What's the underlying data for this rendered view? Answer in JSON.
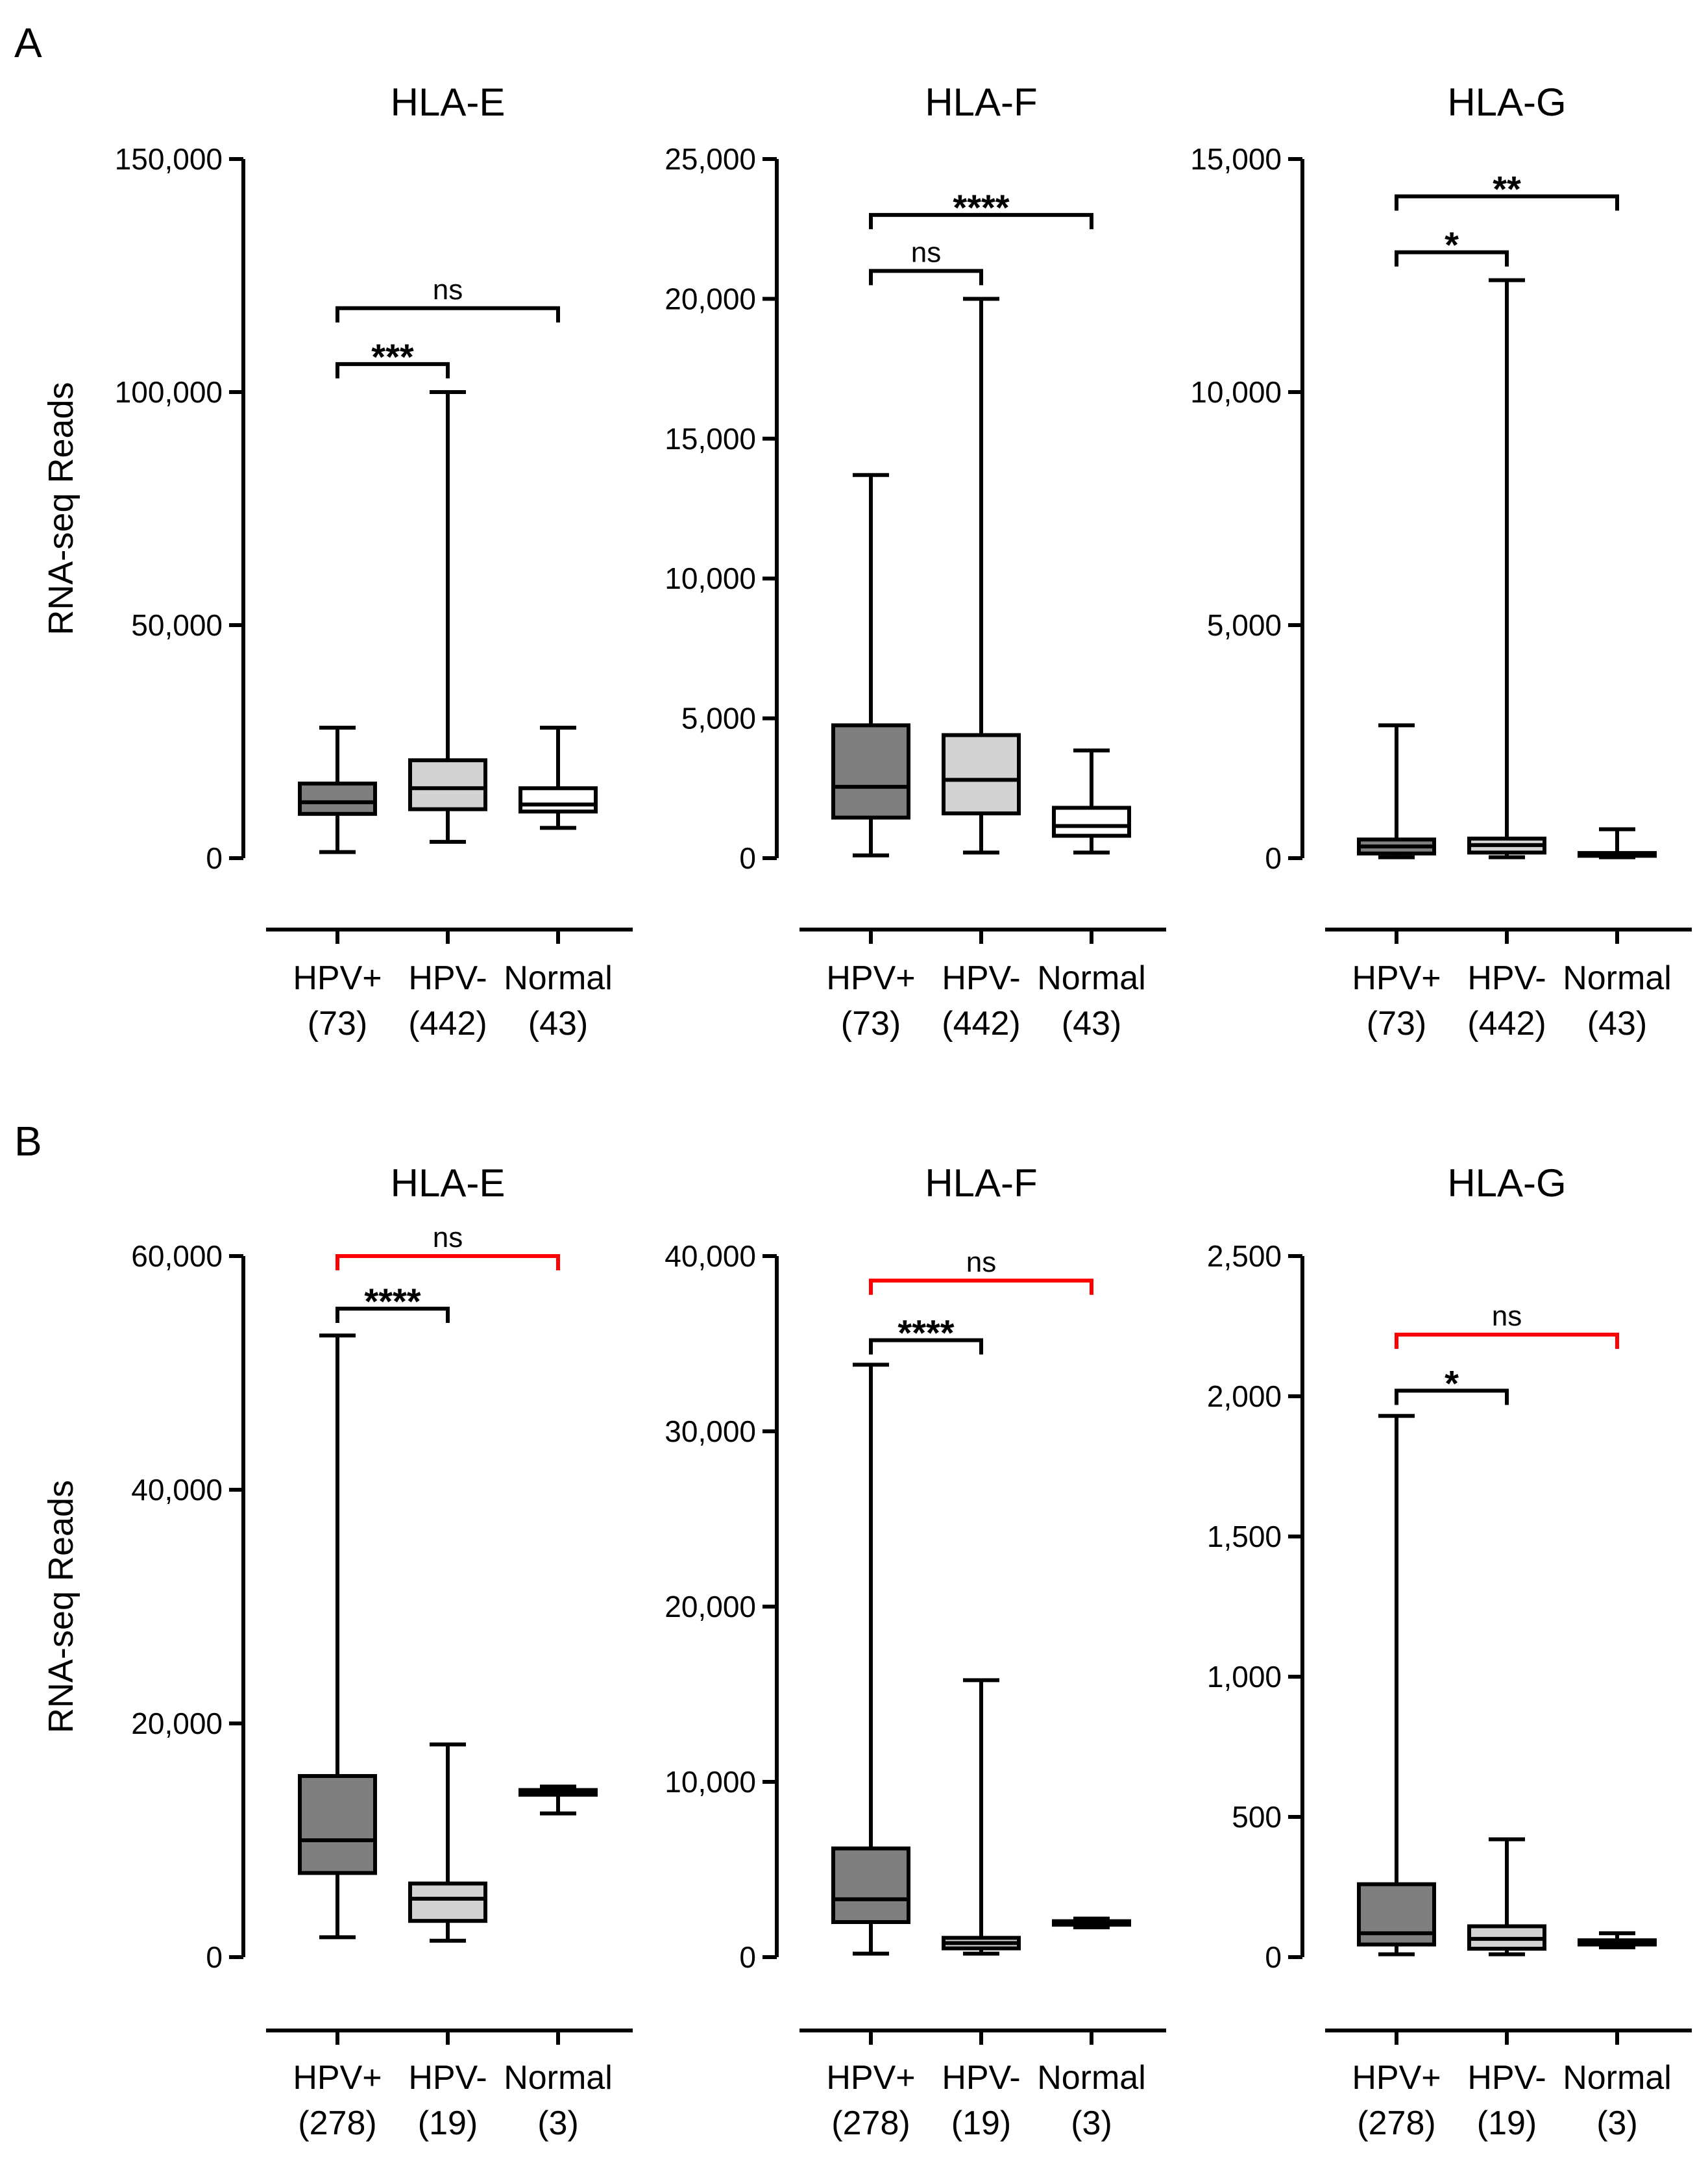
{
  "figure": {
    "panel_labels": [
      "A",
      "B"
    ],
    "ylabel": "RNA-seq Reads"
  },
  "colors": {
    "hpv_pos": "#7f7f7f",
    "hpv_neg": "#d3d3d3",
    "normal": "#ffffff",
    "bracket_black": "#000000",
    "bracket_red": "#ff0000"
  },
  "chart_data": [
    {
      "type": "box",
      "panel": "A",
      "title": "HLA-E",
      "ylabel": "RNA-seq Reads",
      "ylim": [
        0,
        150000
      ],
      "yticks": [
        0,
        50000,
        100000,
        150000
      ],
      "ytick_labels": [
        "0",
        "50,000",
        "100,000",
        "150,000"
      ],
      "categories": [
        "HPV+",
        "HPV-",
        "Normal"
      ],
      "counts": [
        "(73)",
        "(442)",
        "(43)"
      ],
      "boxes": [
        {
          "min": 1300,
          "q1": 9500,
          "median": 12000,
          "q3": 16000,
          "max": 28000,
          "fill": "hpv_pos"
        },
        {
          "min": 3500,
          "q1": 10500,
          "median": 15000,
          "q3": 21000,
          "max": 100000,
          "fill": "hpv_neg"
        },
        {
          "min": 6500,
          "q1": 10000,
          "median": 11500,
          "q3": 15000,
          "max": 28000,
          "fill": "normal"
        }
      ],
      "brackets": [
        {
          "from": 0,
          "to": 1,
          "y": 106000,
          "label": "***",
          "color": "bracket_black"
        },
        {
          "from": 0,
          "to": 2,
          "y": 118000,
          "label": "ns",
          "color": "bracket_black"
        }
      ]
    },
    {
      "type": "box",
      "panel": "A",
      "title": "HLA-F",
      "ylabel": "",
      "ylim": [
        0,
        25000
      ],
      "yticks": [
        0,
        5000,
        10000,
        15000,
        20000,
        25000
      ],
      "ytick_labels": [
        "0",
        "5,000",
        "10,000",
        "15,000",
        "20,000",
        "25,000"
      ],
      "categories": [
        "HPV+",
        "HPV-",
        "Normal"
      ],
      "counts": [
        "(73)",
        "(442)",
        "(43)"
      ],
      "boxes": [
        {
          "min": 100,
          "q1": 1450,
          "median": 2550,
          "q3": 4750,
          "max": 13700,
          "fill": "hpv_pos"
        },
        {
          "min": 200,
          "q1": 1600,
          "median": 2800,
          "q3": 4400,
          "max": 20000,
          "fill": "hpv_neg"
        },
        {
          "min": 200,
          "q1": 800,
          "median": 1150,
          "q3": 1800,
          "max": 3850,
          "fill": "normal"
        }
      ],
      "brackets": [
        {
          "from": 0,
          "to": 1,
          "y": 21000,
          "label": "ns",
          "color": "bracket_black"
        },
        {
          "from": 0,
          "to": 2,
          "y": 23000,
          "label": "****",
          "color": "bracket_black"
        }
      ]
    },
    {
      "type": "box",
      "panel": "A",
      "title": "HLA-G",
      "ylabel": "",
      "ylim": [
        0,
        15000
      ],
      "yticks": [
        0,
        5000,
        10000,
        15000
      ],
      "ytick_labels": [
        "0",
        "5,000",
        "10,000",
        "15,000"
      ],
      "categories": [
        "HPV+",
        "HPV-",
        "Normal"
      ],
      "counts": [
        "(73)",
        "(442)",
        "(43)"
      ],
      "boxes": [
        {
          "min": 20,
          "q1": 100,
          "median": 250,
          "q3": 400,
          "max": 2850,
          "fill": "hpv_pos"
        },
        {
          "min": 20,
          "q1": 120,
          "median": 280,
          "q3": 420,
          "max": 12400,
          "fill": "hpv_neg"
        },
        {
          "min": 20,
          "q1": 50,
          "median": 80,
          "q3": 110,
          "max": 620,
          "fill": "normal"
        }
      ],
      "brackets": [
        {
          "from": 0,
          "to": 1,
          "y": 13000,
          "label": "*",
          "color": "bracket_black"
        },
        {
          "from": 0,
          "to": 2,
          "y": 14200,
          "label": "**",
          "color": "bracket_black"
        }
      ]
    },
    {
      "type": "box",
      "panel": "B",
      "title": "HLA-E",
      "ylabel": "RNA-seq Reads",
      "ylim": [
        0,
        60000
      ],
      "yticks": [
        0,
        20000,
        40000,
        60000
      ],
      "ytick_labels": [
        "0",
        "20,000",
        "40,000",
        "60,000"
      ],
      "categories": [
        "HPV+",
        "HPV-",
        "Normal"
      ],
      "counts": [
        "(278)",
        "(19)",
        "(3)"
      ],
      "boxes": [
        {
          "min": 1700,
          "q1": 7200,
          "median": 10000,
          "q3": 15500,
          "max": 53200,
          "fill": "hpv_pos"
        },
        {
          "min": 1400,
          "q1": 3100,
          "median": 5000,
          "q3": 6300,
          "max": 18200,
          "fill": "hpv_neg"
        },
        {
          "min": 12300,
          "q1": 13900,
          "median": 14100,
          "q3": 14300,
          "max": 14600,
          "fill": "normal"
        }
      ],
      "brackets": [
        {
          "from": 0,
          "to": 1,
          "y": 55500,
          "label": "****",
          "color": "bracket_black"
        },
        {
          "from": 0,
          "to": 2,
          "y": 60000,
          "label": "ns",
          "color": "bracket_red"
        }
      ]
    },
    {
      "type": "box",
      "panel": "B",
      "title": "HLA-F",
      "ylabel": "",
      "ylim": [
        0,
        40000
      ],
      "yticks": [
        0,
        10000,
        20000,
        30000,
        40000
      ],
      "ytick_labels": [
        "0",
        "10,000",
        "20,000",
        "30,000",
        "40,000"
      ],
      "categories": [
        "HPV+",
        "HPV-",
        "Normal"
      ],
      "counts": [
        "(278)",
        "(19)",
        "(3)"
      ],
      "boxes": [
        {
          "min": 200,
          "q1": 2000,
          "median": 3300,
          "q3": 6200,
          "max": 33800,
          "fill": "hpv_pos"
        },
        {
          "min": 200,
          "q1": 500,
          "median": 800,
          "q3": 1100,
          "max": 15800,
          "fill": "hpv_neg"
        },
        {
          "min": 1700,
          "q1": 1850,
          "median": 1950,
          "q3": 2050,
          "max": 2200,
          "fill": "normal"
        }
      ],
      "brackets": [
        {
          "from": 0,
          "to": 1,
          "y": 35200,
          "label": "****",
          "color": "bracket_black"
        },
        {
          "from": 0,
          "to": 2,
          "y": 38600,
          "label": "ns",
          "color": "bracket_red"
        }
      ]
    },
    {
      "type": "box",
      "panel": "B",
      "title": "HLA-G",
      "ylabel": "",
      "ylim": [
        0,
        2500
      ],
      "yticks": [
        0,
        500,
        1000,
        1500,
        2000,
        2500
      ],
      "ytick_labels": [
        "0",
        "500",
        "1,000",
        "1,500",
        "2,000",
        "2,500"
      ],
      "categories": [
        "HPV+",
        "HPV-",
        "Normal"
      ],
      "counts": [
        "(278)",
        "(19)",
        "(3)"
      ],
      "boxes": [
        {
          "min": 10,
          "q1": 45,
          "median": 85,
          "q3": 260,
          "max": 1930,
          "fill": "hpv_pos"
        },
        {
          "min": 10,
          "q1": 30,
          "median": 65,
          "q3": 110,
          "max": 420,
          "fill": "hpv_neg"
        },
        {
          "min": 35,
          "q1": 45,
          "median": 52,
          "q3": 60,
          "max": 85,
          "fill": "normal"
        }
      ],
      "brackets": [
        {
          "from": 0,
          "to": 1,
          "y": 2020,
          "label": "*",
          "color": "bracket_black"
        },
        {
          "from": 0,
          "to": 2,
          "y": 2220,
          "label": "ns",
          "color": "bracket_red"
        }
      ]
    }
  ]
}
